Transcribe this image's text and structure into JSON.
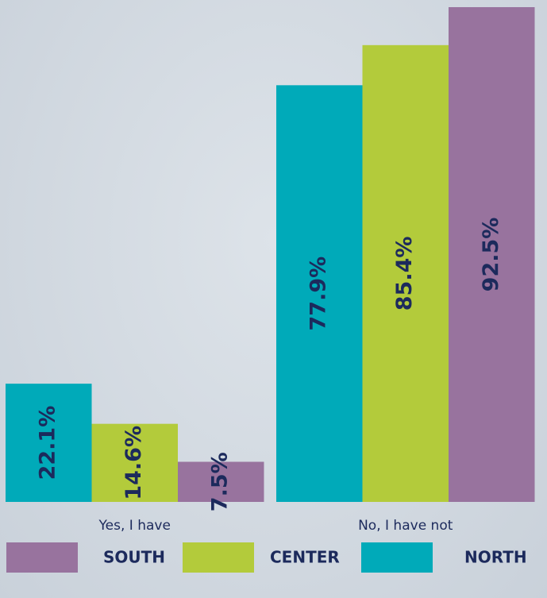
{
  "chart_data": {
    "type": "bar",
    "categories": [
      "Yes, I have",
      "No, I have not"
    ],
    "series": [
      {
        "name": "NORTH",
        "color": "#00aab9",
        "values": [
          22.1,
          77.9
        ],
        "value_labels": [
          "22.1%",
          "77.9%"
        ]
      },
      {
        "name": "CENTER",
        "color": "#b3cb3b",
        "values": [
          14.6,
          85.4
        ],
        "value_labels": [
          "14.6%",
          "85.4%"
        ]
      },
      {
        "name": "SOUTH",
        "color": "#98739e",
        "values": [
          7.5,
          92.5
        ],
        "value_labels": [
          "7.5%",
          "92.5%"
        ]
      }
    ],
    "legend_order": [
      "SOUTH",
      "CENTER",
      "NORTH"
    ]
  }
}
